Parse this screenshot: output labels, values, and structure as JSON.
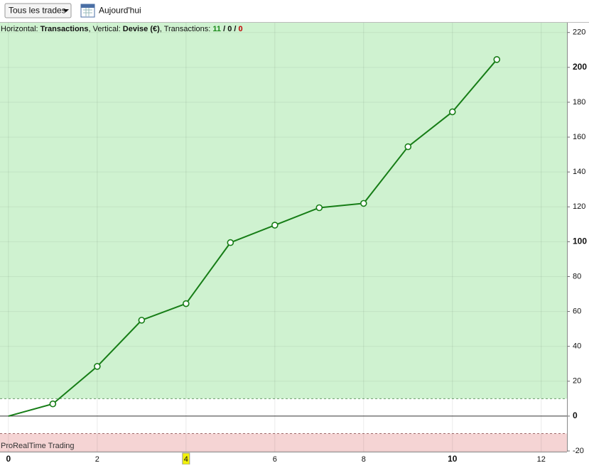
{
  "toolbar": {
    "filter": "Tous les trades",
    "date_button": "Aujourd'hui"
  },
  "chart_data": {
    "type": "line",
    "info": [
      {
        "text": "Horizontal: ",
        "bold": false
      },
      {
        "text": "Transactions",
        "bold": true
      },
      {
        "text": ", Vertical: ",
        "bold": false
      },
      {
        "text": "Devise (€)",
        "bold": true
      },
      {
        "text": ", Transactions: ",
        "bold": false
      },
      {
        "text": "11",
        "bold": true,
        "color": "#1a8a1a"
      },
      {
        "text": " / ",
        "bold": true
      },
      {
        "text": "0",
        "bold": true
      },
      {
        "text": " / ",
        "bold": true
      },
      {
        "text": "0",
        "bold": true,
        "color": "#c00000"
      }
    ],
    "watermark": "ProRealTime Trading",
    "x": [
      0,
      1,
      2,
      3,
      4,
      5,
      6,
      7,
      8,
      9,
      10,
      11
    ],
    "values": [
      0,
      7,
      28.5,
      55,
      64.5,
      99.5,
      109.5,
      119.5,
      122,
      154.5,
      174.5,
      204.5
    ],
    "color": "#167d16",
    "xlim": [
      -0.19,
      12.58
    ],
    "ylim": [
      -20.4,
      225.6
    ],
    "xticks": [
      0,
      2,
      4,
      6,
      8,
      10,
      12
    ],
    "yticks": [
      -20,
      0,
      20,
      40,
      60,
      80,
      100,
      120,
      140,
      160,
      180,
      200,
      220
    ],
    "thresholds": [
      10,
      -10
    ],
    "profit_color": "#cff2d0",
    "loss_color": "#f5d4d4",
    "grid": true
  }
}
